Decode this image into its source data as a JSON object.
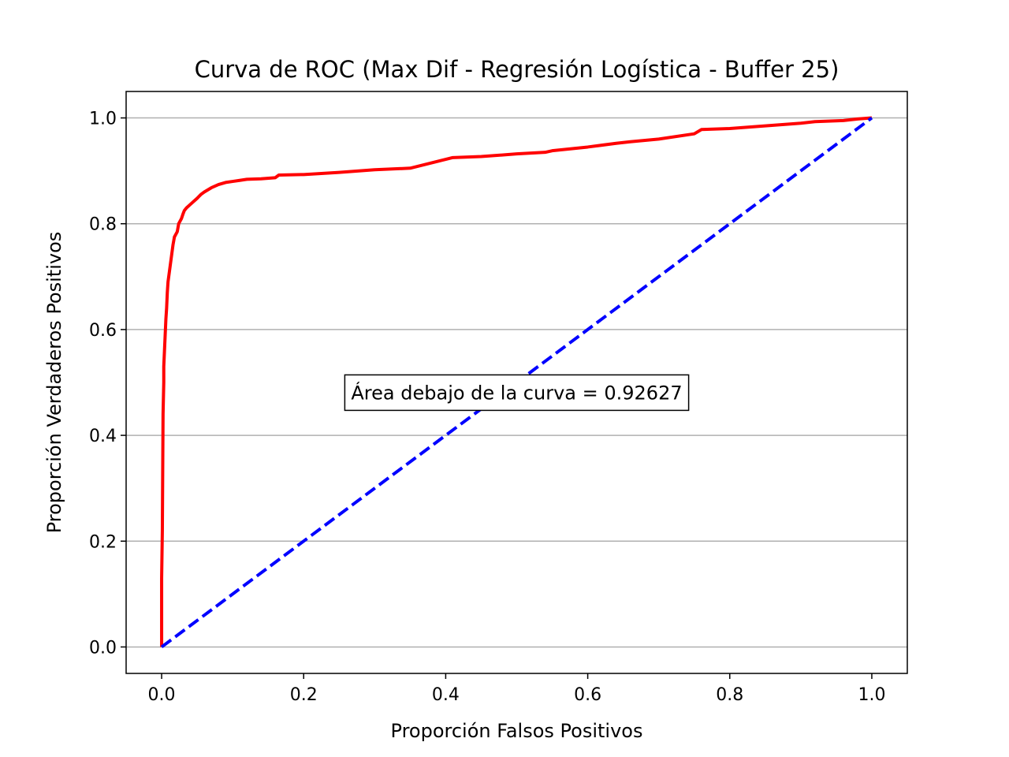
{
  "chart_data": {
    "type": "line",
    "title": "Curva de ROC (Max Dif - Regresión Logística - Buffer 25)",
    "xlabel": "Proporción Falsos Positivos",
    "ylabel": "Proporción Verdaderos Positivos",
    "xlim": [
      -0.05,
      1.05
    ],
    "ylim": [
      -0.05,
      1.05
    ],
    "xticks": [
      0.0,
      0.2,
      0.4,
      0.6,
      0.8,
      1.0
    ],
    "yticks": [
      0.0,
      0.2,
      0.4,
      0.6,
      0.8,
      1.0
    ],
    "xtick_labels": [
      "0.0",
      "0.2",
      "0.4",
      "0.6",
      "0.8",
      "1.0"
    ],
    "ytick_labels": [
      "0.0",
      "0.2",
      "0.4",
      "0.6",
      "0.8",
      "1.0"
    ],
    "grid": "horizontal",
    "annotation": "Área debajo de la curva = 0.92627",
    "annotation_position": {
      "x": 0.5,
      "y": 0.48
    },
    "series": [
      {
        "style": "solid",
        "color": "#ff0000",
        "x": [
          0.0,
          0.0,
          0.001,
          0.002,
          0.003,
          0.003,
          0.004,
          0.005,
          0.006,
          0.007,
          0.008,
          0.009,
          0.01,
          0.012,
          0.014,
          0.016,
          0.018,
          0.02,
          0.022,
          0.024,
          0.028,
          0.03,
          0.032,
          0.035,
          0.04,
          0.045,
          0.05,
          0.055,
          0.06,
          0.07,
          0.08,
          0.09,
          0.1,
          0.11,
          0.12,
          0.14,
          0.16,
          0.165,
          0.2,
          0.25,
          0.3,
          0.35,
          0.38,
          0.41,
          0.45,
          0.5,
          0.54,
          0.55,
          0.6,
          0.64,
          0.66,
          0.7,
          0.75,
          0.76,
          0.8,
          0.85,
          0.9,
          0.92,
          0.96,
          0.98,
          1.0
        ],
        "y": [
          0.0,
          0.13,
          0.22,
          0.44,
          0.5,
          0.53,
          0.56,
          0.59,
          0.62,
          0.64,
          0.67,
          0.69,
          0.7,
          0.72,
          0.74,
          0.76,
          0.775,
          0.78,
          0.785,
          0.8,
          0.81,
          0.818,
          0.825,
          0.83,
          0.836,
          0.842,
          0.848,
          0.855,
          0.86,
          0.868,
          0.874,
          0.878,
          0.88,
          0.882,
          0.884,
          0.885,
          0.887,
          0.892,
          0.893,
          0.897,
          0.902,
          0.905,
          0.915,
          0.925,
          0.927,
          0.932,
          0.935,
          0.938,
          0.945,
          0.952,
          0.955,
          0.96,
          0.97,
          0.978,
          0.98,
          0.985,
          0.99,
          0.993,
          0.995,
          0.998,
          1.0
        ]
      },
      {
        "style": "dashed",
        "color": "#0000ff",
        "x": [
          0.0,
          1.0
        ],
        "y": [
          0.0,
          1.0
        ]
      }
    ]
  }
}
